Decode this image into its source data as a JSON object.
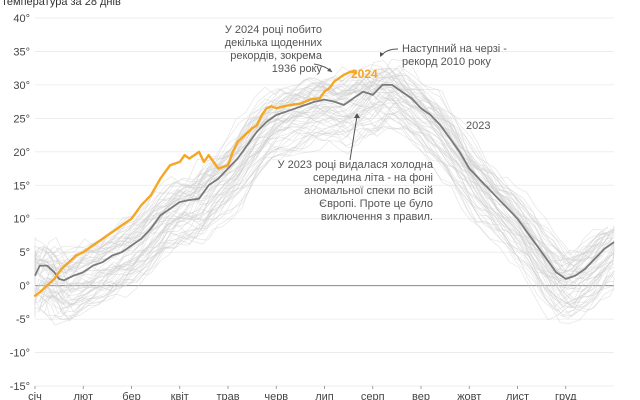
{
  "chart_data": {
    "type": "line",
    "title": "",
    "subtitle": "температура за 28 днів",
    "xlabel": "",
    "ylabel": "",
    "ylim": [
      -15,
      40
    ],
    "y_ticks": [
      -15,
      -10,
      -5,
      0,
      5,
      10,
      15,
      20,
      25,
      30,
      35,
      40
    ],
    "y_tick_labels": [
      "-15°",
      "-10°",
      "-5°",
      "0°",
      "5°",
      "10°",
      "15°",
      "20°",
      "25°",
      "30°",
      "35°",
      "40°"
    ],
    "x_ticks": [
      "січ",
      "лют",
      "бер",
      "квіт",
      "трав",
      "черв",
      "лип",
      "серп",
      "вер",
      "жовт",
      "лист",
      "груд"
    ],
    "grid": "horizontal",
    "colors": {
      "year_2024": "#f5a623",
      "year_2023": "#7a7a7a",
      "history": "#cfcfcf",
      "zero_line": "#888888",
      "text": "#444444"
    },
    "series": [
      {
        "name": "2024",
        "x": [
          0,
          0.1,
          0.25,
          0.4,
          0.55,
          0.7,
          0.85,
          1.0,
          1.2,
          1.4,
          1.6,
          1.8,
          2.0,
          2.2,
          2.4,
          2.6,
          2.8,
          3.0,
          3.1,
          3.2,
          3.3,
          3.4,
          3.5,
          3.6,
          3.8,
          4.0,
          4.1,
          4.2,
          4.35,
          4.5,
          4.6,
          4.7,
          4.8,
          4.9,
          5.0,
          5.15,
          5.3,
          5.5,
          5.7,
          5.9,
          6.0,
          6.1,
          6.2,
          6.3,
          6.4,
          6.55,
          6.65
        ],
        "values": [
          -1.5,
          -1,
          0,
          1,
          2.5,
          3.5,
          4.5,
          5,
          6,
          7,
          8,
          9,
          10,
          12,
          13.5,
          16,
          18,
          18.5,
          19.5,
          19,
          19.5,
          20,
          18.5,
          19.5,
          17.5,
          18,
          20,
          21.5,
          22.5,
          23.5,
          24,
          25.5,
          26.5,
          26.8,
          26.5,
          26.8,
          27,
          27.2,
          27.8,
          28,
          29,
          29.5,
          30.5,
          31,
          31.5,
          32,
          31.8
        ]
      },
      {
        "name": "2023",
        "x": [
          0,
          0.1,
          0.25,
          0.4,
          0.5,
          0.6,
          0.8,
          1.0,
          1.2,
          1.4,
          1.6,
          1.8,
          2.0,
          2.2,
          2.4,
          2.6,
          2.8,
          3.0,
          3.2,
          3.4,
          3.6,
          3.8,
          4.0,
          4.2,
          4.4,
          4.6,
          4.8,
          5.0,
          5.2,
          5.4,
          5.6,
          5.8,
          6.0,
          6.2,
          6.4,
          6.6,
          6.8,
          7.0,
          7.2,
          7.4,
          7.6,
          7.8,
          8.0,
          8.2,
          8.4,
          8.6,
          8.8,
          9.0,
          9.2,
          9.4,
          9.6,
          9.8,
          10.0,
          10.2,
          10.4,
          10.6,
          10.8,
          11.0,
          11.2,
          11.4,
          11.6,
          11.8,
          12.0
        ],
        "values": [
          1.5,
          3,
          3,
          2,
          1,
          0.8,
          1.5,
          2,
          3,
          3.5,
          4.5,
          5,
          6,
          7,
          8.5,
          10.5,
          11.5,
          12.5,
          12.8,
          13,
          15,
          16,
          17.5,
          19,
          21,
          23,
          24.5,
          25.5,
          26,
          26.5,
          27,
          27.5,
          27.8,
          27.5,
          27,
          28,
          29,
          28.5,
          30,
          30,
          29,
          28,
          26.5,
          25.5,
          24,
          22,
          20,
          17.5,
          16,
          14.5,
          13,
          11.5,
          10,
          8,
          6,
          4,
          2,
          1,
          1.5,
          2.5,
          4,
          5.5,
          6.5
        ]
      }
    ],
    "annotations": [
      {
        "id": "record-2024",
        "text": [
          "У 2024 році побито",
          "декілька щоденних",
          "рекордів, зокрема",
          "1936 року"
        ]
      },
      {
        "id": "next-2010",
        "text": [
          "Наступний на черзі -",
          "рекорд 2010 року"
        ]
      },
      {
        "id": "mid-2023",
        "text": [
          "У 2023 році видалася холодна",
          "середина літа - на фоні",
          "аномальної спеки по всій",
          "Європі. Проте це було",
          "виключення з правил."
        ]
      }
    ],
    "series_labels": {
      "year_2024": "2024",
      "year_2023": "2023"
    }
  }
}
